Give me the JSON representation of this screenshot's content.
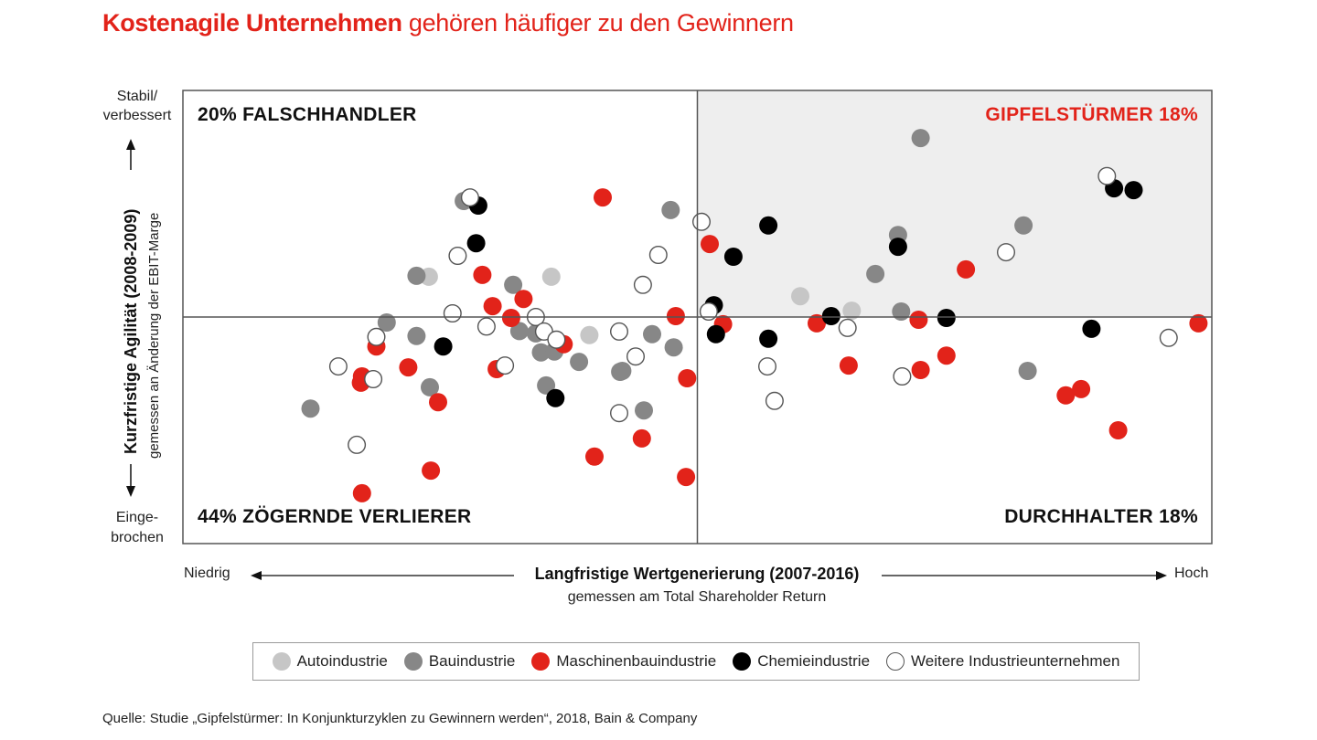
{
  "title": {
    "bold": "Kostenagile Unternehmen",
    "regular": "gehören häufiger zu den Gewinnern"
  },
  "source": "Quelle: Studie „Gipfelstürmer: In Konjunkturzyklen zu Gewinnern werden“, 2018, Bain & Company",
  "colors": {
    "accent": "#e2231a",
    "highlight_quadrant": "#eeeeee",
    "axis": "#555555"
  },
  "chart_data": {
    "type": "scatter",
    "title": "Kostenagile Unternehmen gehören häufiger zu den Gewinnern",
    "xlabel": "Langfristige Wertgenerierung (2007-2016)",
    "xlabel_sub": "gemessen am Total Shareholder Return",
    "x_low_label": "Niedrig",
    "x_high_label": "Hoch",
    "ylabel": "Kurzfristige Agilität (2008-2009)",
    "ylabel_sub": "gemessen an Änderung der EBIT-Marge",
    "y_high_label": "Stabil/ verbessert",
    "y_low_label": "Einge- brochen",
    "xlim": [
      0,
      100
    ],
    "ylim": [
      0,
      100
    ],
    "x_divider": 50,
    "y_divider": 50,
    "grid": false,
    "legend_position": "bottom",
    "quadrants": [
      {
        "position": "top-left",
        "label": "20% FALSCHHANDLER",
        "highlight": false,
        "accent": false
      },
      {
        "position": "top-right",
        "label": "GIPFELSTÜRMER 18%",
        "highlight": true,
        "accent": true
      },
      {
        "position": "bottom-left",
        "label": "44% ZÖGERNDE VERLIERER",
        "highlight": false,
        "accent": false
      },
      {
        "position": "bottom-right",
        "label": "DURCHHALTER 18%",
        "highlight": false,
        "accent": false
      }
    ],
    "categories": [
      {
        "key": "auto",
        "name": "Autoindustrie",
        "fill": "#c6c6c6",
        "stroke": "none"
      },
      {
        "key": "bau",
        "name": "Bauindustrie",
        "fill": "#878787",
        "stroke": "none"
      },
      {
        "key": "maschinen",
        "name": "Maschinenbauindustrie",
        "fill": "#e2231a",
        "stroke": "none"
      },
      {
        "key": "chemie",
        "name": "Chemieindustrie",
        "fill": "#000000",
        "stroke": "none"
      },
      {
        "key": "weitere",
        "name": "Weitere Industrieunternehmen",
        "fill": "#ffffff",
        "stroke": "#555555"
      }
    ],
    "series": [
      {
        "name": "Autoindustrie",
        "key": "auto",
        "points": [
          [
            23.9,
            58.9
          ],
          [
            35.8,
            58.9
          ],
          [
            39.5,
            46.0
          ],
          [
            60.0,
            54.6
          ],
          [
            65.0,
            51.4
          ]
        ]
      },
      {
        "name": "Bauindustrie",
        "key": "bau",
        "points": [
          [
            27.3,
            75.6
          ],
          [
            22.7,
            59.1
          ],
          [
            19.8,
            48.8
          ],
          [
            22.7,
            45.8
          ],
          [
            12.4,
            29.8
          ],
          [
            24.0,
            34.5
          ],
          [
            32.1,
            57.1
          ],
          [
            32.7,
            46.9
          ],
          [
            34.3,
            46.4
          ],
          [
            34.8,
            42.2
          ],
          [
            36.1,
            42.4
          ],
          [
            35.3,
            34.9
          ],
          [
            38.5,
            40.1
          ],
          [
            42.5,
            37.9
          ],
          [
            42.7,
            38.1
          ],
          [
            45.6,
            46.2
          ],
          [
            47.7,
            43.3
          ],
          [
            44.8,
            29.4
          ],
          [
            47.4,
            73.6
          ],
          [
            71.7,
            89.5
          ],
          [
            69.5,
            68.1
          ],
          [
            67.3,
            59.5
          ],
          [
            69.8,
            51.2
          ],
          [
            81.7,
            70.2
          ],
          [
            82.1,
            38.1
          ]
        ]
      },
      {
        "name": "Maschinenbauindustrie",
        "key": "maschinen",
        "points": [
          [
            18.8,
            43.5
          ],
          [
            17.3,
            35.5
          ],
          [
            21.9,
            38.9
          ],
          [
            24.8,
            31.2
          ],
          [
            17.4,
            36.9
          ],
          [
            29.1,
            59.3
          ],
          [
            30.1,
            52.4
          ],
          [
            31.9,
            49.8
          ],
          [
            33.1,
            54.0
          ],
          [
            30.5,
            38.5
          ],
          [
            37.0,
            44.0
          ],
          [
            40.0,
            19.2
          ],
          [
            24.1,
            16.1
          ],
          [
            17.4,
            11.1
          ],
          [
            51.2,
            66.1
          ],
          [
            40.8,
            76.4
          ],
          [
            47.9,
            50.2
          ],
          [
            49.0,
            36.5
          ],
          [
            44.6,
            23.2
          ],
          [
            48.9,
            14.7
          ],
          [
            52.5,
            48.4
          ],
          [
            61.6,
            48.6
          ],
          [
            64.7,
            39.3
          ],
          [
            71.5,
            49.4
          ],
          [
            71.7,
            38.3
          ],
          [
            74.2,
            41.5
          ],
          [
            76.1,
            60.5
          ],
          [
            85.8,
            32.7
          ],
          [
            87.3,
            34.1
          ],
          [
            90.9,
            25.0
          ],
          [
            98.7,
            48.6
          ]
        ]
      },
      {
        "name": "Chemieindustrie",
        "key": "chemie",
        "points": [
          [
            28.7,
            74.6
          ],
          [
            28.5,
            66.3
          ],
          [
            25.3,
            43.5
          ],
          [
            36.2,
            32.1
          ],
          [
            56.9,
            70.2
          ],
          [
            53.5,
            63.3
          ],
          [
            51.6,
            52.6
          ],
          [
            51.8,
            46.2
          ],
          [
            56.9,
            45.2
          ],
          [
            63.0,
            50.2
          ],
          [
            69.5,
            65.5
          ],
          [
            74.2,
            49.8
          ],
          [
            90.5,
            78.4
          ],
          [
            92.4,
            78.0
          ],
          [
            88.3,
            47.4
          ]
        ]
      },
      {
        "name": "Weitere Industrieunternehmen",
        "key": "weitere",
        "points": [
          [
            27.9,
            76.4
          ],
          [
            26.7,
            63.5
          ],
          [
            26.2,
            50.8
          ],
          [
            29.5,
            47.9
          ],
          [
            34.3,
            50.0
          ],
          [
            35.1,
            46.8
          ],
          [
            36.3,
            45.0
          ],
          [
            18.8,
            45.6
          ],
          [
            15.1,
            39.1
          ],
          [
            18.5,
            36.3
          ],
          [
            16.9,
            21.8
          ],
          [
            31.3,
            39.3
          ],
          [
            42.4,
            46.8
          ],
          [
            44.0,
            41.3
          ],
          [
            42.4,
            28.8
          ],
          [
            46.2,
            63.7
          ],
          [
            44.7,
            57.1
          ],
          [
            50.4,
            71.0
          ],
          [
            51.1,
            51.2
          ],
          [
            64.6,
            47.6
          ],
          [
            56.8,
            39.1
          ],
          [
            57.5,
            31.5
          ],
          [
            69.9,
            36.9
          ],
          [
            80.0,
            64.3
          ],
          [
            89.8,
            81.1
          ],
          [
            95.8,
            45.4
          ]
        ]
      }
    ]
  }
}
